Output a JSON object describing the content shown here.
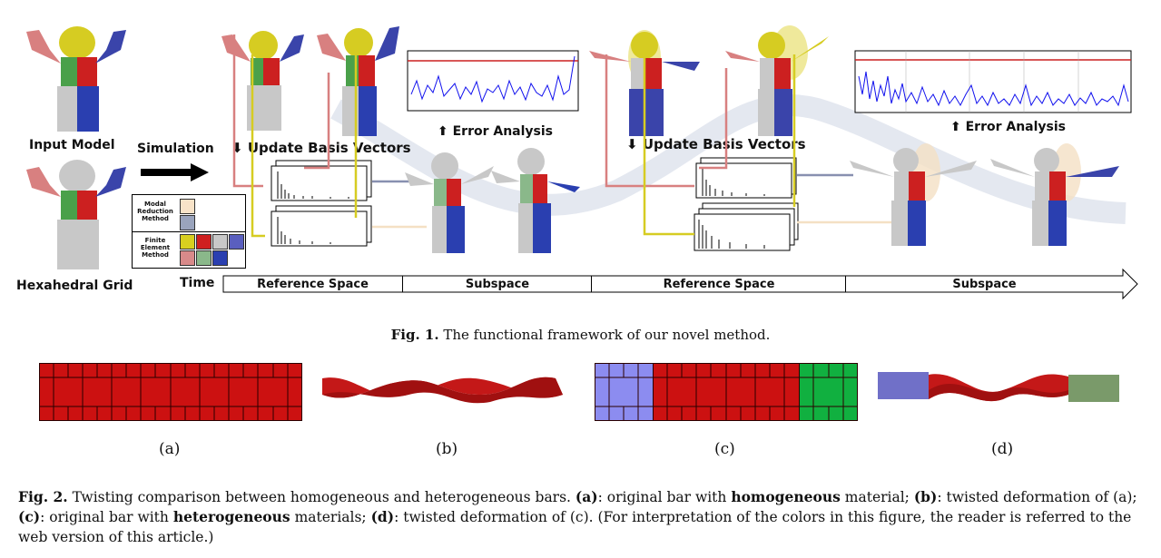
{
  "fig1": {
    "input_model": "Input Model",
    "hex_grid": "Hexahedral Grid",
    "simulation": "Simulation",
    "update_basis_1": "Update Basis Vectors",
    "update_basis_2": "Update Basis Vectors",
    "error_analysis_1": "Error Analysis",
    "error_analysis_2": "Error Analysis",
    "time": "Time",
    "legend": {
      "modal": "Modal\nReduction\nMethod",
      "fem": "Finite\nElement\nMethod",
      "modal_colors": [
        "#f8e3c8",
        "#9aa4bd"
      ],
      "fem_colors": [
        "#d8cf1f",
        "#cf1f1f",
        "#c8c8c8",
        "#5a5fbf",
        "#d88a8a",
        "#8ab88a",
        "#2a3fb0"
      ]
    },
    "timeline": [
      "Reference Space",
      "Subspace",
      "Reference Space",
      "Subspace"
    ],
    "caption_label": "Fig. 1.",
    "caption_text": " The functional framework of our novel method."
  },
  "fig2": {
    "sub_a": "(a)",
    "sub_b": "(b)",
    "sub_c": "(c)",
    "sub_d": "(d)",
    "caption": {
      "label": "Fig. 2.",
      "t1": " Twisting comparison between homogeneous and heterogeneous bars. ",
      "a": "(a)",
      "t2": ": original bar with ",
      "homog": "homogeneous",
      "t3": " material; ",
      "b": "(b)",
      "t4": ": twisted deformation of (a); ",
      "c": "(c)",
      "t5": ": original bar with ",
      "heter": "heterogeneous",
      "t6": " materials; ",
      "d": "(d)",
      "t7": ": twisted deformation of (c). (For interpretation of the colors in this figure, the reader is referred to the web version of this article.)"
    },
    "colors": {
      "red": "#cc1111",
      "blue": "#8c8cf0",
      "green": "#11b040",
      "grid": "#2a0000"
    }
  }
}
